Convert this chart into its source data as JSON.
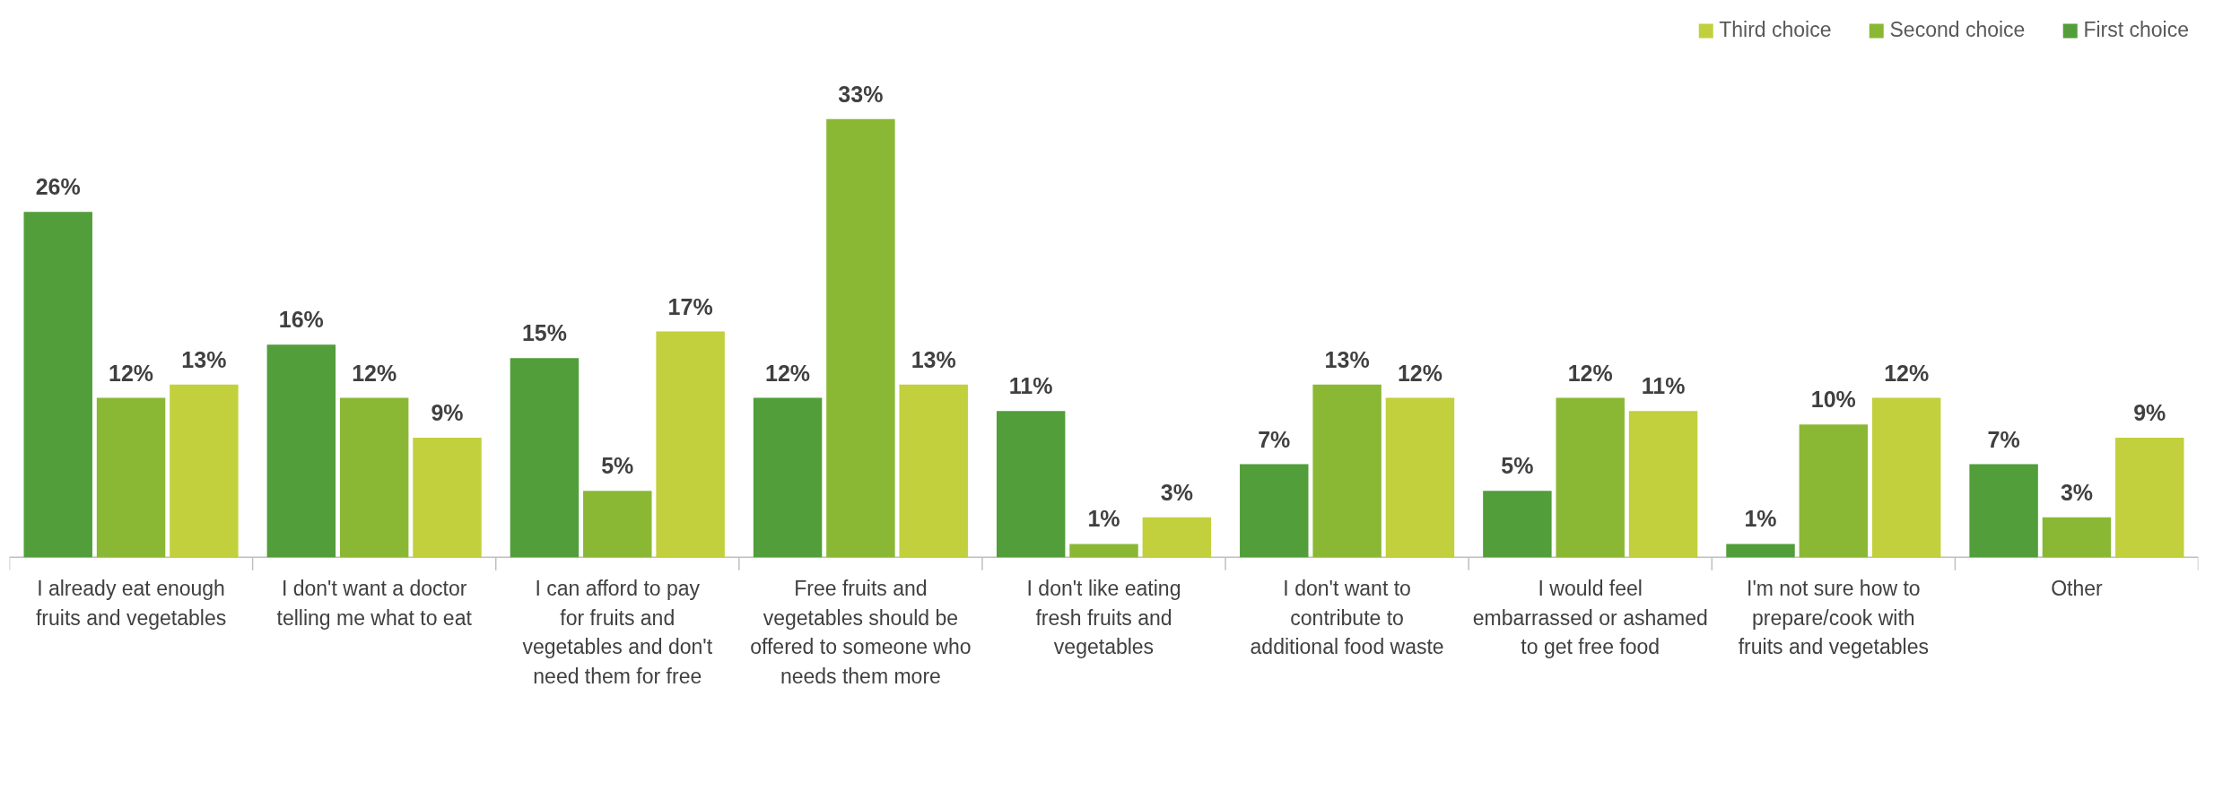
{
  "chart_data": {
    "type": "bar",
    "categories": [
      "I already eat enough fruits and vegetables",
      "I don't want a doctor telling me what to eat",
      "I can afford to pay for fruits and vegetables and don't need them for free",
      "Free fruits and vegetables should be offered to someone who needs them more",
      "I don't like eating fresh fruits and vegetables",
      "I don't want to contribute to additional food waste",
      "I would feel embarrassed or ashamed to get free food",
      "I'm not sure how to prepare/cook with fruits and vegetables",
      "Other"
    ],
    "series": [
      {
        "name": "First choice",
        "color": "#519e3a",
        "values": [
          26,
          16,
          15,
          12,
          11,
          7,
          5,
          1,
          7
        ],
        "value_labels": [
          "26%",
          "16%",
          "15%",
          "12%",
          "11%",
          "7%",
          "5%",
          "1%",
          "7%"
        ]
      },
      {
        "name": "Second choice",
        "color": "#8bb834",
        "values": [
          12,
          12,
          5,
          33,
          1,
          13,
          12,
          10,
          3
        ],
        "value_labels": [
          "12%",
          "12%",
          "5%",
          "33%",
          "1%",
          "13%",
          "12%",
          "10%",
          "3%"
        ]
      },
      {
        "name": "Third choice",
        "color": "#c1d03c",
        "values": [
          13,
          9,
          17,
          13,
          3,
          12,
          11,
          12,
          9
        ],
        "value_labels": [
          "13%",
          "9%",
          "17%",
          "13%",
          "3%",
          "12%",
          "11%",
          "12%",
          "9%"
        ]
      }
    ],
    "legend": "top right"
  }
}
